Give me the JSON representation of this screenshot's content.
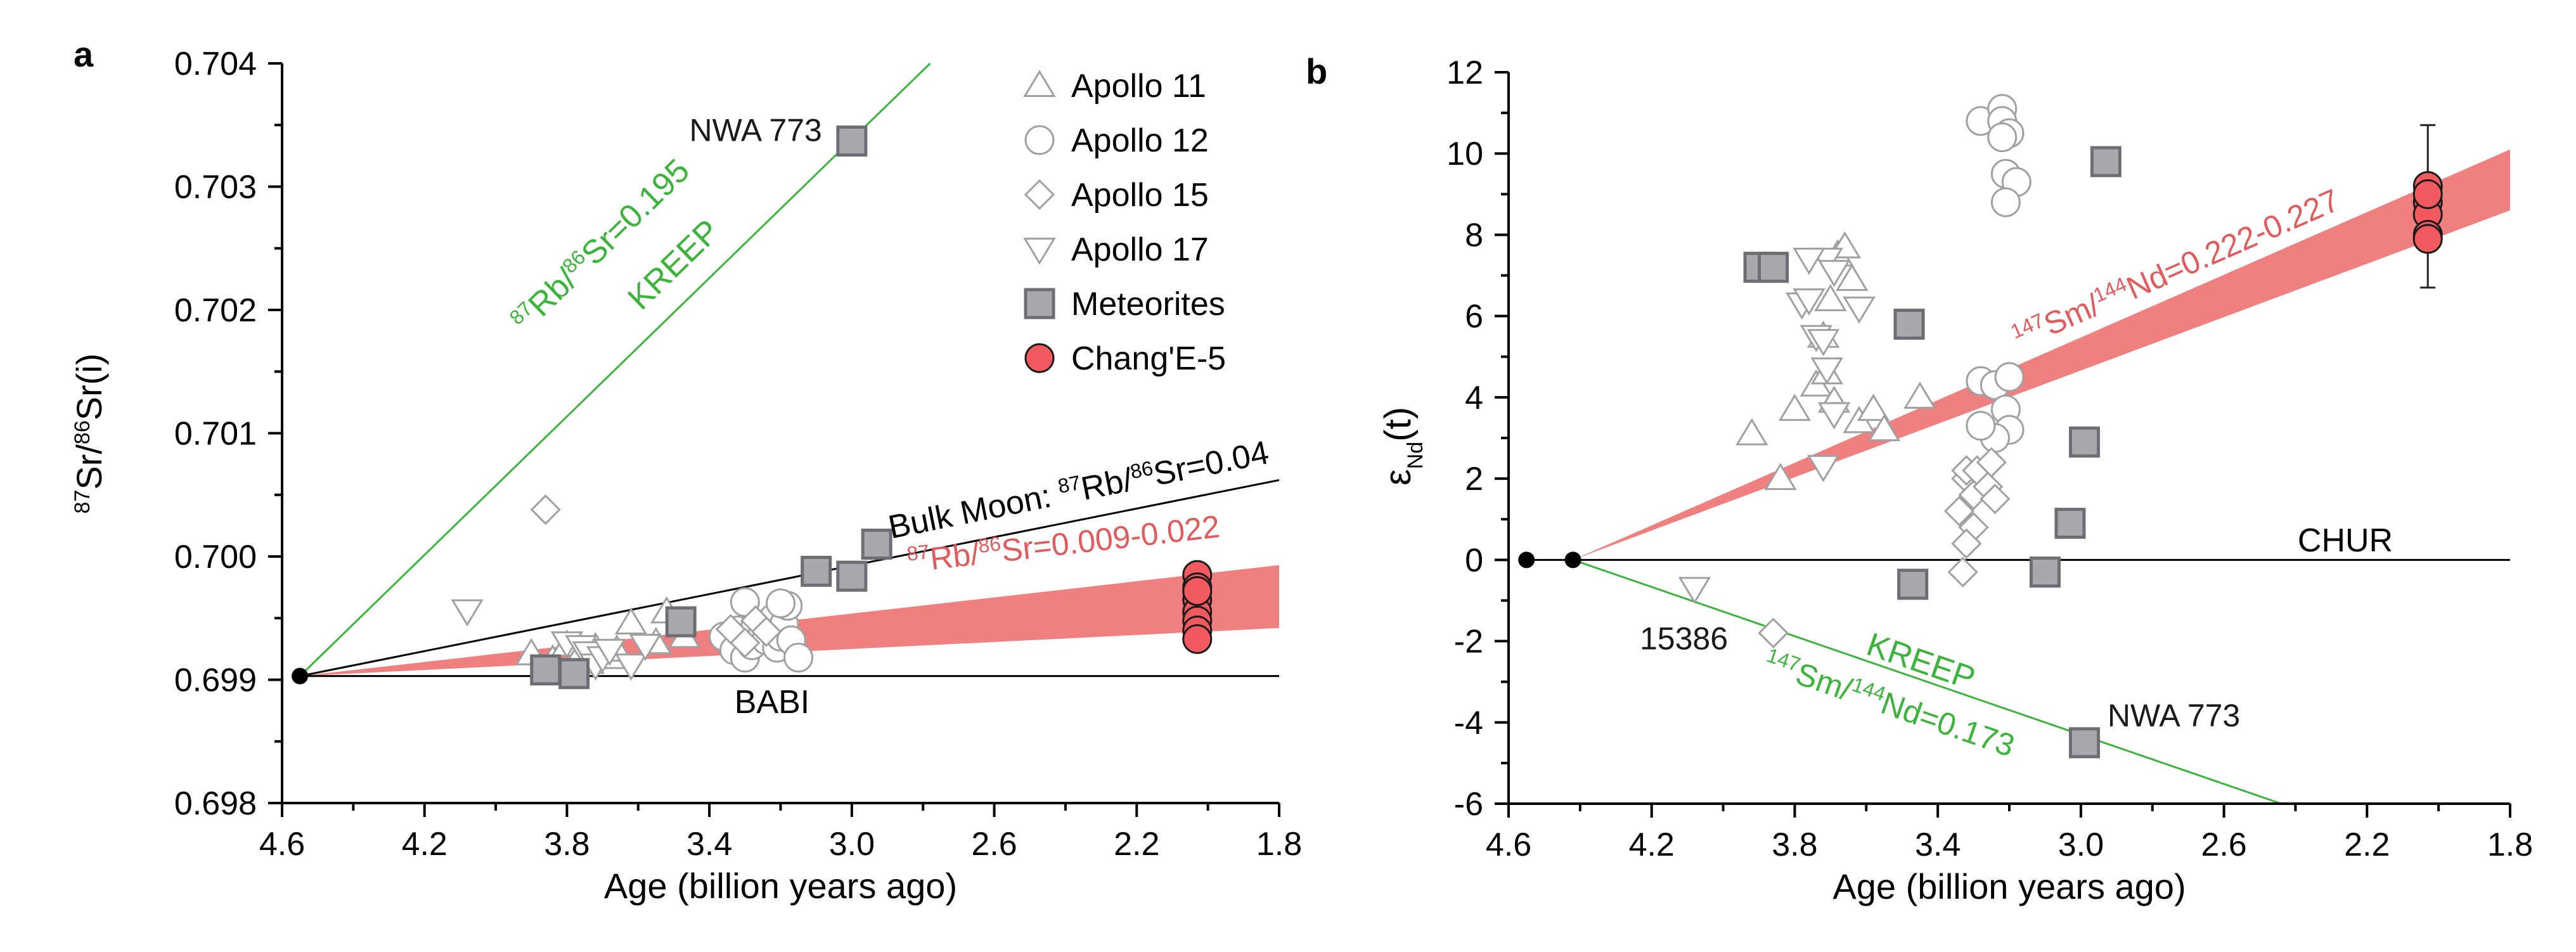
{
  "chart_data": [
    {
      "panel_label": "a",
      "type": "scatter",
      "xlabel": "Age (billion years ago)",
      "ylabel": {
        "main": "Sr/",
        "sup1": "87",
        "sup2": "86",
        "tail": "Sr(i)"
      },
      "xlim": [
        4.6,
        1.8
      ],
      "ylim": [
        0.698,
        0.704
      ],
      "x_reversed": true,
      "xticks": [
        "4.6",
        "4.2",
        "3.8",
        "3.4",
        "3.0",
        "2.6",
        "2.2",
        "1.8"
      ],
      "yticks": [
        "0.698",
        "0.699",
        "0.700",
        "0.701",
        "0.702",
        "0.703",
        "0.704"
      ],
      "grid": false,
      "legend_position": "top-right",
      "legend": [
        {
          "label": "Apollo 11",
          "marker": "triangle"
        },
        {
          "label": "Apollo 12",
          "marker": "circle"
        },
        {
          "label": "Apollo 15",
          "marker": "diamond"
        },
        {
          "label": "Apollo 17",
          "marker": "triangle-down"
        },
        {
          "label": "Meteorites",
          "marker": "square"
        },
        {
          "label": "Chang'E-5",
          "marker": "circle-red"
        }
      ],
      "reference_lines": [
        {
          "id": "kreep",
          "color": "#3cb43c",
          "from": [
            4.55,
            0.69903
          ],
          "to": [
            2.78,
            0.704
          ],
          "label": "Rb/86Sr=0.195",
          "label2": "KREEP",
          "sup": "87",
          "sup_mid": "86"
        },
        {
          "id": "bulk-moon",
          "color": "#000000",
          "from": [
            4.55,
            0.69903
          ],
          "to": [
            1.8,
            0.70062
          ],
          "label_prefix": "Bulk Moon: ",
          "sup": "87",
          "sup_mid": "86",
          "label_text": "Rb/ Sr=0.04"
        },
        {
          "id": "babi",
          "color": "#000000",
          "from": [
            4.55,
            0.69903
          ],
          "to": [
            1.8,
            0.69903
          ],
          "label": "BABI"
        }
      ],
      "band": {
        "color": "#f08080",
        "anchor": [
          4.55,
          0.69903
        ],
        "upper_end": [
          1.8,
          0.69993
        ],
        "lower_end": [
          1.8,
          0.69942
        ],
        "sup": "87",
        "sup_mid": "86",
        "label_text": "Rb/ Sr=0.009-0.022"
      },
      "anchor_point": [
        4.55,
        0.69903
      ],
      "annotations": [
        {
          "text": "NWA  773",
          "x": 3.27,
          "y": 0.70337
        }
      ],
      "series": [
        {
          "name": "Apollo 11",
          "marker": "triangle",
          "points": [
            [
              3.9,
              0.69921
            ],
            [
              3.84,
              0.69916
            ],
            [
              3.8,
              0.69928
            ],
            [
              3.76,
              0.69922
            ],
            [
              3.74,
              0.69914
            ],
            [
              3.72,
              0.69926
            ],
            [
              3.68,
              0.69918
            ],
            [
              3.66,
              0.69924
            ],
            [
              3.62,
              0.69946
            ],
            [
              3.55,
              0.6993
            ],
            [
              3.52,
              0.69955
            ],
            [
              3.47,
              0.69935
            ]
          ]
        },
        {
          "name": "Apollo 12",
          "marker": "circle",
          "points": [
            [
              3.36,
              0.69935
            ],
            [
              3.33,
              0.69924
            ],
            [
              3.32,
              0.6994
            ],
            [
              3.3,
              0.69918
            ],
            [
              3.28,
              0.69928
            ],
            [
              3.27,
              0.69945
            ],
            [
              3.25,
              0.69938
            ],
            [
              3.24,
              0.69932
            ],
            [
              3.22,
              0.6995
            ],
            [
              3.21,
              0.69926
            ],
            [
              3.2,
              0.69935
            ],
            [
              3.19,
              0.69945
            ],
            [
              3.18,
              0.6996
            ],
            [
              3.17,
              0.69932
            ],
            [
              3.15,
              0.69918
            ],
            [
              3.3,
              0.69963
            ],
            [
              3.2,
              0.69962
            ]
          ]
        },
        {
          "name": "Apollo 15",
          "marker": "diamond",
          "points": [
            [
              3.86,
              0.70038
            ],
            [
              3.34,
              0.69941
            ],
            [
              3.3,
              0.6993
            ],
            [
              3.27,
              0.69948
            ],
            [
              3.24,
              0.69939
            ]
          ]
        },
        {
          "name": "Apollo 17",
          "marker": "triangle-down",
          "points": [
            [
              4.08,
              0.69956
            ],
            [
              3.8,
              0.6993
            ],
            [
              3.76,
              0.69927
            ],
            [
              3.74,
              0.69922
            ],
            [
              3.72,
              0.69912
            ],
            [
              3.7,
              0.69918
            ],
            [
              3.68,
              0.69924
            ],
            [
              3.62,
              0.69912
            ],
            [
              3.58,
              0.69928
            ]
          ]
        },
        {
          "name": "Meteorites",
          "marker": "square",
          "points": [
            [
              3.0,
              0.70337
            ],
            [
              3.86,
              0.69908
            ],
            [
              3.78,
              0.69905
            ],
            [
              3.48,
              0.69947
            ],
            [
              3.1,
              0.69988
            ],
            [
              3.0,
              0.69984
            ],
            [
              2.93,
              0.7001
            ]
          ]
        },
        {
          "name": "Chang'E-5",
          "marker": "circle-red",
          "points": [
            [
              2.03,
              0.69985
            ],
            [
              2.03,
              0.69975
            ],
            [
              2.03,
              0.69965
            ],
            [
              2.03,
              0.69955
            ],
            [
              2.03,
              0.69948
            ],
            [
              2.03,
              0.6994
            ],
            [
              2.03,
              0.69933
            ],
            [
              2.03,
              0.69972
            ]
          ]
        }
      ]
    },
    {
      "panel_label": "b",
      "type": "scatter",
      "xlabel": "Age (billion years ago)",
      "ylabel": {
        "main": "ε",
        "sub": "Nd",
        "tail": "(t)"
      },
      "xlim": [
        4.6,
        1.8
      ],
      "ylim": [
        -6,
        12
      ],
      "x_reversed": true,
      "xticks": [
        "4.6",
        "4.2",
        "3.8",
        "3.4",
        "3.0",
        "2.6",
        "2.2",
        "1.8"
      ],
      "yticks": [
        "-6",
        "-4",
        "-2",
        "0",
        "2",
        "4",
        "6",
        "8",
        "10",
        "12"
      ],
      "grid": false,
      "reference_lines": [
        {
          "id": "chur",
          "color": "#000000",
          "from": [
            4.55,
            0
          ],
          "to": [
            1.8,
            0
          ],
          "label": "CHUR"
        },
        {
          "id": "kreep",
          "color": "#3cb43c",
          "from": [
            4.42,
            0
          ],
          "to": [
            2.44,
            -6
          ],
          "label_top": "KREEP",
          "sup": "147",
          "sup_mid": "144",
          "label_text": "Sm/ Nd=0.173"
        }
      ],
      "band": {
        "color": "#f08080",
        "anchor": [
          4.42,
          0
        ],
        "upper_end": [
          1.8,
          10.1
        ],
        "lower_end": [
          1.8,
          8.6
        ],
        "sup": "147",
        "sup_mid": "144",
        "label_text": "Sm/ Nd=0.222-0.227"
      },
      "anchor_points": [
        [
          4.55,
          0
        ],
        [
          4.42,
          0
        ]
      ],
      "annotations": [
        {
          "text": "NWA 773",
          "x": 2.74,
          "y": -4.1
        },
        {
          "text": "15386",
          "x": 4.11,
          "y": -2.2
        }
      ],
      "series": [
        {
          "name": "Apollo 11",
          "marker": "triangle",
          "points": [
            [
              3.92,
              3.1
            ],
            [
              3.84,
              2.0
            ],
            [
              3.8,
              3.7
            ],
            [
              3.74,
              4.3
            ],
            [
              3.72,
              5.5
            ],
            [
              3.7,
              6.4
            ],
            [
              3.68,
              7.5
            ],
            [
              3.66,
              7.7
            ],
            [
              3.64,
              6.9
            ],
            [
              3.62,
              3.4
            ],
            [
              3.58,
              3.7
            ],
            [
              3.55,
              3.2
            ],
            [
              3.45,
              4.0
            ],
            [
              3.71,
              4.6
            ],
            [
              3.69,
              3.9
            ]
          ]
        },
        {
          "name": "Apollo 12",
          "marker": "circle",
          "points": [
            [
              3.28,
              10.8
            ],
            [
              3.22,
              11.1
            ],
            [
              3.22,
              10.8
            ],
            [
              3.2,
              10.5
            ],
            [
              3.22,
              10.4
            ],
            [
              3.21,
              9.5
            ],
            [
              3.18,
              9.3
            ],
            [
              3.21,
              8.8
            ],
            [
              3.28,
              4.4
            ],
            [
              3.24,
              4.3
            ],
            [
              3.2,
              4.5
            ],
            [
              3.21,
              3.7
            ],
            [
              3.2,
              3.2
            ],
            [
              3.24,
              3.0
            ],
            [
              3.28,
              3.3
            ]
          ]
        },
        {
          "name": "Apollo 15",
          "marker": "diamond",
          "points": [
            [
              3.86,
              -1.8
            ],
            [
              3.34,
              1.2
            ],
            [
              3.32,
              2.0
            ],
            [
              3.32,
              2.2
            ],
            [
              3.3,
              1.6
            ],
            [
              3.3,
              0.8
            ],
            [
              3.32,
              0.4
            ],
            [
              3.33,
              -0.3
            ],
            [
              3.29,
              2.2
            ],
            [
              3.26,
              1.8
            ],
            [
              3.25,
              2.4
            ],
            [
              3.24,
              1.5
            ]
          ]
        },
        {
          "name": "Apollo 17",
          "marker": "triangle-down",
          "points": [
            [
              4.08,
              -0.7
            ],
            [
              3.78,
              6.3
            ],
            [
              3.76,
              6.4
            ],
            [
              3.74,
              5.5
            ],
            [
              3.72,
              5.4
            ],
            [
              3.71,
              4.7
            ],
            [
              3.69,
              3.6
            ],
            [
              3.72,
              2.3
            ],
            [
              3.71,
              7.4
            ],
            [
              3.69,
              7.1
            ],
            [
              3.62,
              6.2
            ],
            [
              3.76,
              7.4
            ]
          ]
        },
        {
          "name": "Meteorites",
          "marker": "square",
          "points": [
            [
              3.9,
              7.2
            ],
            [
              3.86,
              7.2
            ],
            [
              3.48,
              5.8
            ],
            [
              3.47,
              -0.6
            ],
            [
              3.1,
              -0.3
            ],
            [
              3.03,
              0.9
            ],
            [
              2.93,
              9.8
            ],
            [
              2.99,
              2.9
            ],
            [
              2.99,
              -4.5
            ]
          ]
        },
        {
          "name": "Chang'E-5",
          "marker": "circle-red",
          "points": [
            [
              2.03,
              9.2
            ],
            [
              2.03,
              8.8
            ],
            [
              2.03,
              8.5
            ],
            [
              2.03,
              8.0
            ],
            [
              2.03,
              7.9
            ],
            [
              2.03,
              9.0
            ]
          ],
          "error_bar": [
            6.7,
            10.7
          ]
        }
      ]
    }
  ]
}
